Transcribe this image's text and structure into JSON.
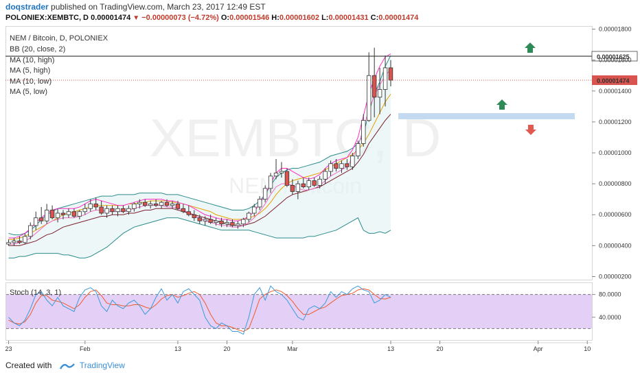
{
  "header": {
    "user": "doqstrader",
    "published": "published on TradingView.com, March 23, 2017 12:49 EST",
    "symbol": "POLONIEX:XEMBTC, D",
    "last": "0.00001474",
    "change": "−0.00000073 (−4.72%)",
    "o_label": "O:",
    "o": "0.00001546",
    "h_label": "H:",
    "h": "0.00001602",
    "l_label": "L:",
    "l": "0.00001431",
    "c_label": "C:",
    "c": "0.00001474"
  },
  "legend": {
    "title": "NEM / Bitcoin, D, POLONIEX",
    "items": [
      "BB (20, close, 2)",
      "MA (10, high)",
      "MA (5, high)",
      "MA (10, low)",
      "MA (5, low)"
    ],
    "watermark_big": "XEMBTC, D",
    "watermark_small": "NEM / Bitcoin"
  },
  "stoch_label": "Stoch (14, 3, 1)",
  "footer": {
    "created": "Created with",
    "brand": "TradingView"
  },
  "colors": {
    "up": "#ffffff",
    "down": "#d9534f",
    "bb": "#2a8a8a",
    "bb_fill": "#e3f1f1",
    "ma10h": "#e6a000",
    "ma5h": "#ff2ac8",
    "ma10l": "#7b1f2e",
    "ma5l": "#f26bc6",
    "stoch_k": "#3a9ad9",
    "stoch_d": "#ee5a2a",
    "stoch_band": "#e4d0f7",
    "arrow_up": "#2e8b57",
    "arrow_down": "#e05a4f",
    "zone": "#b9d4ee"
  },
  "chart_data": {
    "type": "candlestick",
    "y_axis": {
      "ticks": [
        "0.00001800",
        "0.00001600",
        "0.00001400",
        "0.00001200",
        "0.00001000",
        "0.00000800",
        "0.00000600",
        "0.00000400",
        "0.00000200"
      ],
      "range": [
        1.8e-06,
        1.82e-05
      ],
      "last_price_label": "0.00001474",
      "hline_label": "0.00001625",
      "hline_value": 1.625e-05
    },
    "x_axis": {
      "ticks": [
        "23",
        "Feb",
        "13",
        "20",
        "Mar",
        "13",
        "20",
        "Apr",
        "10"
      ],
      "tick_bar_index": [
        0,
        14,
        31,
        40,
        52,
        70,
        79,
        97,
        106
      ]
    },
    "candles": [
      {
        "o": 4.1e-06,
        "h": 4.4e-06,
        "l": 4e-06,
        "c": 4.2e-06
      },
      {
        "o": 4.2e-06,
        "h": 4.5e-06,
        "l": 4e-06,
        "c": 4.3e-06
      },
      {
        "o": 4.3e-06,
        "h": 4.6e-06,
        "l": 4.1e-06,
        "c": 4.2e-06
      },
      {
        "o": 4.2e-06,
        "h": 4.8e-06,
        "l": 4.1e-06,
        "c": 4.6e-06
      },
      {
        "o": 4.6e-06,
        "h": 5.5e-06,
        "l": 4.4e-06,
        "c": 5.3e-06
      },
      {
        "o": 5.3e-06,
        "h": 6.2e-06,
        "l": 5e-06,
        "c": 5.8e-06
      },
      {
        "o": 5.8e-06,
        "h": 6.5e-06,
        "l": 5.4e-06,
        "c": 5.6e-06
      },
      {
        "o": 5.6e-06,
        "h": 6.7e-06,
        "l": 5.4e-06,
        "c": 6.3e-06
      },
      {
        "o": 6.3e-06,
        "h": 6.6e-06,
        "l": 5.7e-06,
        "c": 5.8e-06
      },
      {
        "o": 5.8e-06,
        "h": 6.4e-06,
        "l": 5.5e-06,
        "c": 6.1e-06
      },
      {
        "o": 6.1e-06,
        "h": 6.3e-06,
        "l": 5.7e-06,
        "c": 6e-06
      },
      {
        "o": 6e-06,
        "h": 6.4e-06,
        "l": 5.8e-06,
        "c": 6.2e-06
      },
      {
        "o": 6.2e-06,
        "h": 6.4e-06,
        "l": 5.8e-06,
        "c": 5.9e-06
      },
      {
        "o": 5.9e-06,
        "h": 6.3e-06,
        "l": 5.7e-06,
        "c": 6.2e-06
      },
      {
        "o": 6.2e-06,
        "h": 6.7e-06,
        "l": 6e-06,
        "c": 6.4e-06
      },
      {
        "o": 6.4e-06,
        "h": 7e-06,
        "l": 6.2e-06,
        "c": 6.7e-06
      },
      {
        "o": 6.7e-06,
        "h": 7.1e-06,
        "l": 6.3e-06,
        "c": 6.5e-06
      },
      {
        "o": 6.5e-06,
        "h": 6.9e-06,
        "l": 6e-06,
        "c": 6.1e-06
      },
      {
        "o": 6.1e-06,
        "h": 6.6e-06,
        "l": 5.8e-06,
        "c": 6.4e-06
      },
      {
        "o": 6.4e-06,
        "h": 6.6e-06,
        "l": 6e-06,
        "c": 6.2e-06
      },
      {
        "o": 6.2e-06,
        "h": 6.6e-06,
        "l": 5.9e-06,
        "c": 6.4e-06
      },
      {
        "o": 6.4e-06,
        "h": 6.6e-06,
        "l": 6.1e-06,
        "c": 6.2e-06
      },
      {
        "o": 6.2e-06,
        "h": 6.6e-06,
        "l": 6e-06,
        "c": 6.4e-06
      },
      {
        "o": 6.4e-06,
        "h": 6.8e-06,
        "l": 6.2e-06,
        "c": 6.7e-06
      },
      {
        "o": 6.7e-06,
        "h": 7e-06,
        "l": 6.4e-06,
        "c": 6.8e-06
      },
      {
        "o": 6.8e-06,
        "h": 7e-06,
        "l": 6.5e-06,
        "c": 6.6e-06
      },
      {
        "o": 6.6e-06,
        "h": 6.9e-06,
        "l": 6.4e-06,
        "c": 6.7e-06
      },
      {
        "o": 6.7e-06,
        "h": 7e-06,
        "l": 6.5e-06,
        "c": 6.6e-06
      },
      {
        "o": 6.6e-06,
        "h": 6.9e-06,
        "l": 6.4e-06,
        "c": 6.8e-06
      },
      {
        "o": 6.8e-06,
        "h": 7e-06,
        "l": 6.5e-06,
        "c": 6.6e-06
      },
      {
        "o": 6.6e-06,
        "h": 6.9e-06,
        "l": 6.4e-06,
        "c": 6.7e-06
      },
      {
        "o": 6.7e-06,
        "h": 6.9e-06,
        "l": 6.3e-06,
        "c": 6.4e-06
      },
      {
        "o": 6.4e-06,
        "h": 6.7e-06,
        "l": 6.1e-06,
        "c": 6.2e-06
      },
      {
        "o": 6.2e-06,
        "h": 6.6e-06,
        "l": 5.9e-06,
        "c": 6e-06
      },
      {
        "o": 6e-06,
        "h": 6.3e-06,
        "l": 5.6e-06,
        "c": 5.8e-06
      },
      {
        "o": 5.8e-06,
        "h": 6e-06,
        "l": 5.4e-06,
        "c": 5.6e-06
      },
      {
        "o": 5.6e-06,
        "h": 5.9e-06,
        "l": 5.3e-06,
        "c": 5.7e-06
      },
      {
        "o": 5.7e-06,
        "h": 6e-06,
        "l": 5.4e-06,
        "c": 5.5e-06
      },
      {
        "o": 5.5e-06,
        "h": 5.8e-06,
        "l": 5.3e-06,
        "c": 5.6e-06
      },
      {
        "o": 5.6e-06,
        "h": 5.8e-06,
        "l": 5.2e-06,
        "c": 5.4e-06
      },
      {
        "o": 5.4e-06,
        "h": 5.7e-06,
        "l": 5.2e-06,
        "c": 5.5e-06
      },
      {
        "o": 5.5e-06,
        "h": 5.7e-06,
        "l": 5.2e-06,
        "c": 5.3e-06
      },
      {
        "o": 5.3e-06,
        "h": 5.6e-06,
        "l": 5.1e-06,
        "c": 5.4e-06
      },
      {
        "o": 5.4e-06,
        "h": 5.8e-06,
        "l": 5.2e-06,
        "c": 5.7e-06
      },
      {
        "o": 5.7e-06,
        "h": 6.2e-06,
        "l": 5.5e-06,
        "c": 6.1e-06
      },
      {
        "o": 6.1e-06,
        "h": 6.7e-06,
        "l": 5.9e-06,
        "c": 6.5e-06
      },
      {
        "o": 6.5e-06,
        "h": 7.2e-06,
        "l": 6.3e-06,
        "c": 7e-06
      },
      {
        "o": 7e-06,
        "h": 7.9e-06,
        "l": 6.8e-06,
        "c": 7.7e-06
      },
      {
        "o": 7.7e-06,
        "h": 8.7e-06,
        "l": 7.4e-06,
        "c": 8.5e-06
      },
      {
        "o": 8.5e-06,
        "h": 9.6e-06,
        "l": 8.3e-06,
        "c": 8.7e-06
      },
      {
        "o": 8.7e-06,
        "h": 9.4e-06,
        "l": 8.4e-06,
        "c": 8.8e-06
      },
      {
        "o": 8.8e-06,
        "h": 9e-06,
        "l": 7.8e-06,
        "c": 7.9e-06
      },
      {
        "o": 7.9e-06,
        "h": 8.3e-06,
        "l": 7.3e-06,
        "c": 7.5e-06
      },
      {
        "o": 7.5e-06,
        "h": 8.2e-06,
        "l": 7e-06,
        "c": 8e-06
      },
      {
        "o": 8e-06,
        "h": 8.4e-06,
        "l": 7.7e-06,
        "c": 7.8e-06
      },
      {
        "o": 7.8e-06,
        "h": 8.4e-06,
        "l": 7.6e-06,
        "c": 8.2e-06
      },
      {
        "o": 8.2e-06,
        "h": 8.4e-06,
        "l": 7.8e-06,
        "c": 7.9e-06
      },
      {
        "o": 7.9e-06,
        "h": 8.5e-06,
        "l": 7.7e-06,
        "c": 8.3e-06
      },
      {
        "o": 8.3e-06,
        "h": 9e-06,
        "l": 8e-06,
        "c": 8.8e-06
      },
      {
        "o": 8.8e-06,
        "h": 9.5e-06,
        "l": 8.5e-06,
        "c": 9.3e-06
      },
      {
        "o": 9.3e-06,
        "h": 9.6e-06,
        "l": 8.8e-06,
        "c": 9e-06
      },
      {
        "o": 9e-06,
        "h": 9.5e-06,
        "l": 8.7e-06,
        "c": 9.3e-06
      },
      {
        "o": 9.3e-06,
        "h": 9.6e-06,
        "l": 8.9e-06,
        "c": 9.1e-06
      },
      {
        "o": 9.1e-06,
        "h": 1e-05,
        "l": 8.9e-06,
        "c": 9.8e-06
      },
      {
        "o": 9.8e-06,
        "h": 1.08e-05,
        "l": 9.6e-06,
        "c": 1.06e-05
      },
      {
        "o": 1.06e-05,
        "h": 1.25e-05,
        "l": 1.04e-05,
        "c": 1.21e-05
      },
      {
        "o": 1.21e-05,
        "h": 1.65e-05,
        "l": 1.2e-05,
        "c": 1.5e-05
      },
      {
        "o": 1.5e-05,
        "h": 1.68e-05,
        "l": 1.23e-05,
        "c": 1.36e-05
      },
      {
        "o": 1.36e-05,
        "h": 1.55e-05,
        "l": 1.25e-05,
        "c": 1.41e-05
      },
      {
        "o": 1.41e-05,
        "h": 1.63e-05,
        "l": 1.3e-05,
        "c": 1.55e-05
      },
      {
        "o": 1.55e-05,
        "h": 1.6e-05,
        "l": 1.43e-05,
        "c": 1.47e-05
      }
    ],
    "bb": {
      "upper": [
        4.8,
        4.7,
        4.7,
        4.8,
        5.0,
        5.3,
        5.7,
        6.0,
        6.2,
        6.4,
        6.5,
        6.6,
        6.7,
        6.8,
        6.9,
        7.0,
        7.1,
        7.2,
        7.2,
        7.2,
        7.3,
        7.3,
        7.3,
        7.3,
        7.4,
        7.4,
        7.4,
        7.4,
        7.4,
        7.3,
        7.3,
        7.3,
        7.2,
        7.1,
        7.0,
        6.9,
        6.8,
        6.7,
        6.6,
        6.5,
        6.4,
        6.3,
        6.3,
        6.3,
        6.4,
        6.6,
        6.9,
        7.3,
        7.9,
        8.4,
        8.7,
        8.9,
        9.0,
        9.0,
        9.1,
        9.2,
        9.3,
        9.4,
        9.6,
        9.8,
        9.9,
        10.0,
        10.1,
        10.3,
        10.6,
        11.2,
        12.6,
        13.8,
        14.6,
        15.6,
        16.3
      ],
      "lower": [
        3.2,
        3.2,
        3.3,
        3.3,
        3.4,
        3.5,
        3.5,
        3.5,
        3.5,
        3.5,
        3.4,
        3.4,
        3.3,
        3.2,
        3.2,
        3.3,
        3.5,
        3.7,
        3.9,
        4.2,
        4.5,
        4.8,
        5.0,
        5.2,
        5.3,
        5.4,
        5.5,
        5.6,
        5.7,
        5.8,
        5.8,
        5.8,
        5.7,
        5.6,
        5.5,
        5.4,
        5.3,
        5.2,
        5.1,
        5.0,
        5.0,
        5.0,
        5.0,
        5.0,
        5.0,
        4.9,
        4.8,
        4.7,
        4.6,
        4.5,
        4.5,
        4.5,
        4.5,
        4.5,
        4.5,
        4.6,
        4.6,
        4.7,
        4.8,
        4.9,
        5.0,
        5.2,
        5.4,
        5.6,
        5.8,
        5.0,
        4.8,
        4.8,
        4.9,
        4.8,
        5.0
      ]
    },
    "ma10h": [
      4.4,
      4.4,
      4.5,
      4.6,
      4.8,
      5.0,
      5.2,
      5.4,
      5.6,
      5.8,
      6.0,
      6.1,
      6.2,
      6.3,
      6.4,
      6.5,
      6.6,
      6.6,
      6.6,
      6.6,
      6.6,
      6.6,
      6.7,
      6.7,
      6.8,
      6.8,
      6.9,
      6.9,
      6.9,
      6.9,
      6.8,
      6.8,
      6.7,
      6.6,
      6.5,
      6.4,
      6.3,
      6.2,
      6.0,
      5.9,
      5.8,
      5.7,
      5.7,
      5.7,
      5.8,
      5.9,
      6.1,
      6.4,
      6.8,
      7.3,
      7.7,
      8.0,
      8.2,
      8.3,
      8.4,
      8.5,
      8.6,
      8.7,
      8.9,
      9.1,
      9.3,
      9.5,
      9.7,
      9.9,
      10.2,
      10.6,
      11.2,
      11.9,
      12.6,
      13.3,
      13.8
    ],
    "ma5h": [
      4.5,
      4.5,
      4.6,
      4.8,
      5.1,
      5.5,
      5.8,
      6.1,
      6.3,
      6.4,
      6.4,
      6.4,
      6.4,
      6.5,
      6.7,
      6.9,
      7.0,
      6.9,
      6.8,
      6.7,
      6.6,
      6.6,
      6.7,
      6.8,
      6.9,
      7.0,
      7.0,
      7.0,
      7.0,
      6.9,
      6.9,
      6.8,
      6.7,
      6.6,
      6.4,
      6.2,
      6.0,
      5.9,
      5.8,
      5.7,
      5.7,
      5.6,
      5.6,
      5.7,
      5.9,
      6.2,
      6.7,
      7.3,
      8.0,
      8.7,
      9.0,
      9.0,
      8.8,
      8.6,
      8.4,
      8.3,
      8.4,
      8.6,
      9.0,
      9.3,
      9.5,
      9.6,
      9.7,
      10.2,
      11.0,
      12.4,
      13.8,
      14.8,
      15.6,
      16.2,
      16.4
    ],
    "ma10l": [
      4.0,
      4.0,
      4.0,
      4.1,
      4.2,
      4.3,
      4.5,
      4.7,
      4.8,
      5.0,
      5.2,
      5.3,
      5.4,
      5.5,
      5.6,
      5.7,
      5.8,
      5.9,
      5.9,
      6.0,
      6.0,
      6.0,
      6.1,
      6.1,
      6.2,
      6.3,
      6.3,
      6.4,
      6.4,
      6.4,
      6.4,
      6.3,
      6.2,
      6.1,
      6.0,
      5.9,
      5.8,
      5.7,
      5.6,
      5.5,
      5.4,
      5.3,
      5.3,
      5.3,
      5.4,
      5.5,
      5.7,
      5.9,
      6.2,
      6.5,
      6.8,
      7.1,
      7.3,
      7.4,
      7.5,
      7.6,
      7.7,
      7.8,
      8.0,
      8.2,
      8.4,
      8.6,
      8.8,
      9.0,
      9.4,
      9.9,
      10.6,
      11.1,
      11.6,
      12.1,
      12.5
    ],
    "ma5l": [
      4.1,
      4.1,
      4.2,
      4.3,
      4.5,
      4.8,
      5.1,
      5.4,
      5.6,
      5.7,
      5.8,
      5.8,
      5.8,
      5.9,
      6.0,
      6.2,
      6.3,
      6.3,
      6.2,
      6.2,
      6.2,
      6.2,
      6.3,
      6.4,
      6.5,
      6.6,
      6.6,
      6.6,
      6.6,
      6.5,
      6.5,
      6.4,
      6.3,
      6.1,
      5.9,
      5.8,
      5.6,
      5.5,
      5.4,
      5.3,
      5.3,
      5.2,
      5.2,
      5.3,
      5.5,
      5.8,
      6.2,
      6.7,
      7.3,
      7.8,
      8.0,
      8.0,
      7.9,
      7.7,
      7.6,
      7.6,
      7.7,
      7.9,
      8.2,
      8.5,
      8.7,
      8.9,
      9.1,
      9.7,
      10.4,
      11.6,
      12.8,
      13.7,
      14.4,
      15.0,
      15.4
    ],
    "stoch": {
      "range": [
        0,
        100
      ],
      "levels": [
        80,
        20
      ],
      "tick_labels": [
        "80.0000",
        "40.0000"
      ],
      "k": [
        40,
        30,
        25,
        35,
        55,
        80,
        85,
        70,
        60,
        75,
        60,
        55,
        50,
        75,
        88,
        92,
        85,
        60,
        50,
        70,
        60,
        55,
        65,
        70,
        60,
        45,
        55,
        75,
        90,
        70,
        80,
        65,
        85,
        90,
        80,
        70,
        40,
        25,
        20,
        30,
        25,
        15,
        15,
        10,
        40,
        80,
        92,
        70,
        95,
        85,
        80,
        70,
        55,
        40,
        35,
        55,
        60,
        55,
        65,
        85,
        75,
        85,
        80,
        90,
        95,
        88,
        85,
        65,
        70,
        80,
        75
      ],
      "d": [
        35,
        30,
        28,
        32,
        45,
        65,
        78,
        78,
        70,
        68,
        65,
        60,
        55,
        62,
        75,
        85,
        88,
        78,
        65,
        62,
        62,
        60,
        60,
        62,
        62,
        58,
        55,
        62,
        72,
        78,
        80,
        75,
        78,
        82,
        85,
        80,
        65,
        45,
        30,
        25,
        25,
        22,
        18,
        15,
        20,
        45,
        72,
        80,
        85,
        88,
        85,
        78,
        68,
        55,
        45,
        45,
        50,
        55,
        58,
        65,
        72,
        78,
        80,
        82,
        88,
        90,
        88,
        80,
        73,
        72,
        75
      ]
    }
  }
}
